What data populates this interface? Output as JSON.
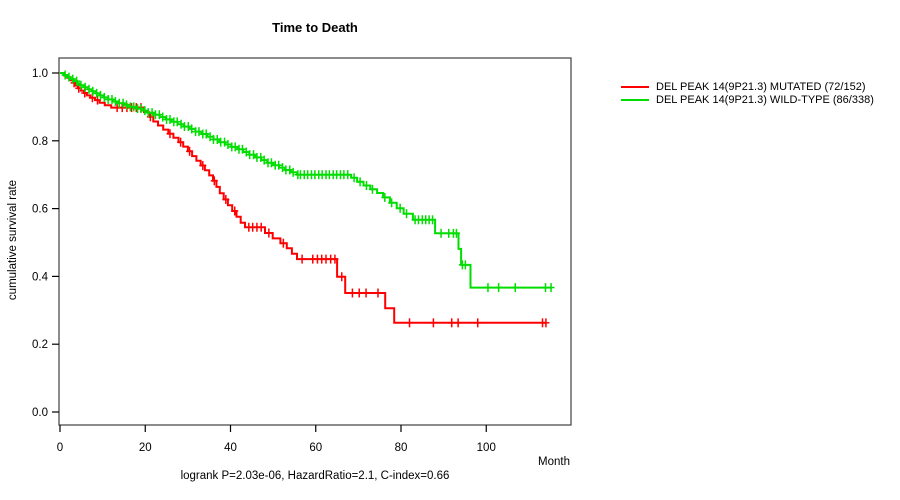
{
  "title": "Time to Death",
  "axes": {
    "y_label": "cumulative survival rate",
    "x_label": "Month"
  },
  "footer": "logrank P=2.03e-06, HazardRatio=2.1, C-index=0.66",
  "legend": [
    {
      "label": "DEL PEAK 14(9P21.3) MUTATED (72/152)",
      "color": "#ff0000"
    },
    {
      "label": "DEL PEAK 14(9P21.3) WILD-TYPE (86/338)",
      "color": "#00dd00"
    }
  ],
  "chart_data": {
    "type": "line",
    "subtype": "kaplan-meier-step",
    "title": "Time to Death",
    "xlabel": "Month",
    "ylabel": "cumulative survival rate",
    "xlim": [
      0,
      120
    ],
    "ylim": [
      0.0,
      1.0
    ],
    "x_ticks": [
      0,
      20,
      40,
      60,
      80,
      100
    ],
    "y_ticks": [
      0.0,
      0.2,
      0.4,
      0.6,
      0.8,
      1.0
    ],
    "grid": false,
    "legend_position": "right-outside",
    "axis_color": "#4d4d4d",
    "series": [
      {
        "name": "DEL PEAK 14(9P21.3) MUTATED (72/152)",
        "color": "#ff0000",
        "end_month": 114.2,
        "steps": [
          [
            0,
            1.0
          ],
          [
            0.9,
            0.993
          ],
          [
            1.7,
            0.986
          ],
          [
            2.4,
            0.979
          ],
          [
            3.0,
            0.971
          ],
          [
            3.6,
            0.963
          ],
          [
            4.2,
            0.955
          ],
          [
            4.9,
            0.948
          ],
          [
            5.6,
            0.941
          ],
          [
            6.3,
            0.934
          ],
          [
            7.1,
            0.927
          ],
          [
            8.2,
            0.92
          ],
          [
            9.3,
            0.912
          ],
          [
            10.5,
            0.905
          ],
          [
            12.0,
            0.898
          ],
          [
            19.7,
            0.885
          ],
          [
            20.8,
            0.871
          ],
          [
            21.9,
            0.857
          ],
          [
            23.0,
            0.845
          ],
          [
            24.2,
            0.833
          ],
          [
            25.4,
            0.821
          ],
          [
            26.6,
            0.809
          ],
          [
            27.8,
            0.796
          ],
          [
            28.9,
            0.783
          ],
          [
            30.0,
            0.769
          ],
          [
            31.0,
            0.755
          ],
          [
            32.0,
            0.741
          ],
          [
            33.0,
            0.727
          ],
          [
            34.0,
            0.713
          ],
          [
            35.0,
            0.698
          ],
          [
            35.9,
            0.682
          ],
          [
            36.7,
            0.664
          ],
          [
            37.5,
            0.645
          ],
          [
            38.4,
            0.627
          ],
          [
            39.4,
            0.61
          ],
          [
            40.4,
            0.593
          ],
          [
            41.4,
            0.576
          ],
          [
            42.4,
            0.558
          ],
          [
            43.4,
            0.545
          ],
          [
            48.1,
            0.528
          ],
          [
            49.9,
            0.512
          ],
          [
            51.7,
            0.498
          ],
          [
            53.2,
            0.483
          ],
          [
            54.4,
            0.467
          ],
          [
            55.6,
            0.451
          ],
          [
            65.0,
            0.399
          ],
          [
            66.9,
            0.351
          ],
          [
            76.3,
            0.306
          ],
          [
            78.4,
            0.263
          ]
        ],
        "censor_months": [
          3.3,
          4.4,
          5.8,
          7.6,
          8.8,
          13.4,
          14.6,
          15.7,
          16.8,
          17.9,
          19.0,
          21.2,
          25.8,
          28.3,
          30.4,
          33.5,
          36.2,
          38.9,
          41.0,
          44.3,
          45.2,
          46.2,
          47.2,
          49.0,
          52.4,
          56.8,
          59.3,
          60.4,
          61.4,
          62.4,
          63.5,
          64.5,
          66.1,
          68.6,
          70.2,
          71.8,
          74.6,
          82.0,
          87.6,
          91.9,
          93.4,
          98.0,
          113.2,
          114.0
        ]
      },
      {
        "name": "DEL PEAK 14(9P21.3) WILD-TYPE (86/338)",
        "color": "#00dd00",
        "end_month": 115.4,
        "steps": [
          [
            0,
            1.0
          ],
          [
            0.8,
            0.994
          ],
          [
            1.6,
            0.988
          ],
          [
            2.4,
            0.982
          ],
          [
            3.2,
            0.976
          ],
          [
            4.0,
            0.97
          ],
          [
            4.8,
            0.964
          ],
          [
            5.7,
            0.958
          ],
          [
            6.6,
            0.952
          ],
          [
            7.5,
            0.946
          ],
          [
            8.4,
            0.94
          ],
          [
            9.3,
            0.934
          ],
          [
            10.3,
            0.928
          ],
          [
            11.3,
            0.922
          ],
          [
            12.4,
            0.916
          ],
          [
            13.6,
            0.911
          ],
          [
            15.0,
            0.906
          ],
          [
            16.4,
            0.9
          ],
          [
            17.8,
            0.895
          ],
          [
            19.2,
            0.889
          ],
          [
            20.6,
            0.883
          ],
          [
            22.0,
            0.877
          ],
          [
            23.4,
            0.87
          ],
          [
            24.8,
            0.863
          ],
          [
            26.2,
            0.856
          ],
          [
            27.6,
            0.849
          ],
          [
            29.0,
            0.842
          ],
          [
            30.4,
            0.835
          ],
          [
            31.8,
            0.827
          ],
          [
            33.2,
            0.82
          ],
          [
            34.6,
            0.812
          ],
          [
            36.0,
            0.804
          ],
          [
            37.4,
            0.796
          ],
          [
            38.8,
            0.789
          ],
          [
            40.2,
            0.782
          ],
          [
            41.6,
            0.775
          ],
          [
            43.0,
            0.767
          ],
          [
            44.4,
            0.759
          ],
          [
            45.8,
            0.751
          ],
          [
            47.2,
            0.743
          ],
          [
            48.6,
            0.735
          ],
          [
            50.0,
            0.728
          ],
          [
            51.4,
            0.721
          ],
          [
            52.8,
            0.714
          ],
          [
            54.2,
            0.707
          ],
          [
            55.6,
            0.7
          ],
          [
            68.3,
            0.691
          ],
          [
            69.7,
            0.679
          ],
          [
            71.2,
            0.668
          ],
          [
            72.8,
            0.657
          ],
          [
            74.4,
            0.646
          ],
          [
            75.8,
            0.633
          ],
          [
            77.4,
            0.617
          ],
          [
            79.0,
            0.601
          ],
          [
            80.6,
            0.585
          ],
          [
            82.8,
            0.567
          ],
          [
            88.0,
            0.527
          ],
          [
            93.5,
            0.481
          ],
          [
            94.1,
            0.434
          ],
          [
            96.3,
            0.367
          ]
        ],
        "censor_months": [
          1.2,
          2.1,
          3.0,
          3.9,
          4.9,
          5.9,
          6.8,
          7.7,
          8.6,
          9.5,
          10.4,
          11.3,
          12.2,
          13.0,
          13.9,
          14.8,
          15.6,
          16.5,
          17.3,
          18.2,
          19.0,
          19.9,
          20.7,
          21.6,
          22.4,
          23.3,
          24.1,
          25.0,
          25.8,
          26.7,
          27.5,
          28.4,
          29.2,
          30.1,
          30.9,
          31.8,
          32.6,
          33.5,
          34.3,
          35.2,
          36.0,
          36.9,
          37.7,
          38.6,
          39.4,
          40.3,
          41.1,
          42.0,
          42.8,
          43.7,
          44.5,
          45.4,
          46.2,
          47.1,
          47.9,
          48.8,
          49.6,
          50.5,
          51.3,
          52.2,
          53.0,
          53.9,
          54.7,
          55.8,
          56.4,
          57.3,
          58.1,
          59.0,
          59.8,
          60.7,
          61.5,
          62.4,
          63.2,
          64.1,
          64.9,
          65.8,
          66.6,
          67.5,
          69.0,
          70.4,
          71.9,
          73.3,
          76.2,
          77.8,
          79.8,
          81.3,
          83.3,
          84.1,
          85.0,
          85.8,
          86.6,
          87.4,
          89.4,
          91.2,
          92.3,
          93.0,
          94.4,
          95.1,
          100.4,
          102.9,
          106.8,
          113.9,
          115.2
        ]
      }
    ]
  }
}
